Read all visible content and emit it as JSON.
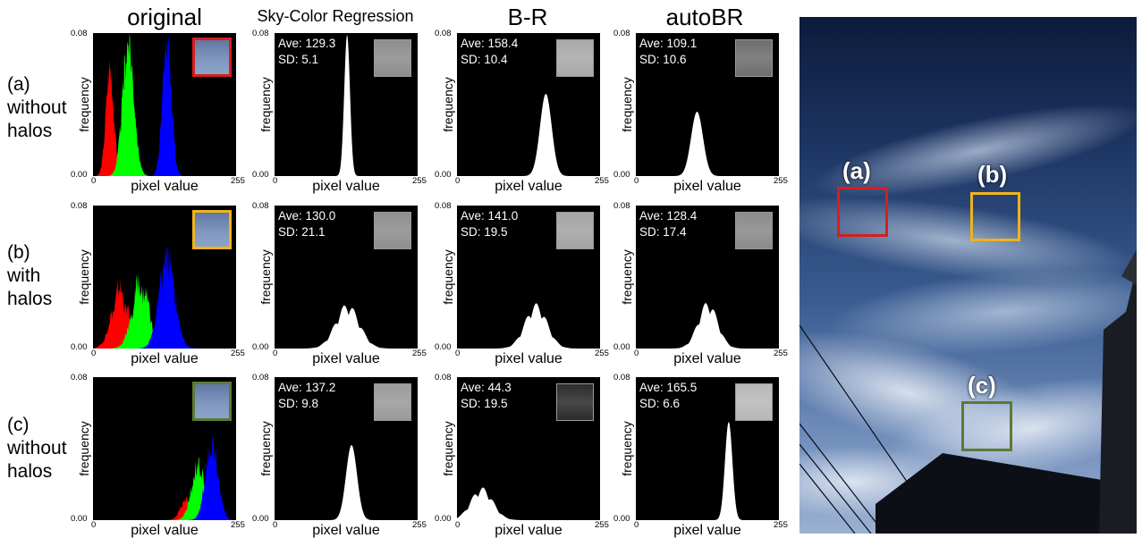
{
  "columns": [
    "original",
    "Sky-Color Regression",
    "B-R",
    "autoBR"
  ],
  "rows": [
    {
      "tag": "(a)",
      "label_lines": [
        "(a)",
        "without",
        "halos"
      ],
      "box_color": "#d81e1e"
    },
    {
      "tag": "(b)",
      "label_lines": [
        "(b)",
        "with",
        "halos"
      ],
      "box_color": "#f0b31c"
    },
    {
      "tag": "(c)",
      "label_lines": [
        "(c)",
        "without",
        "halos"
      ],
      "box_color": "#5a7a36"
    }
  ],
  "axes": {
    "ylabel": "frequency",
    "xlabel": "pixel value",
    "ytick_top": "0.08",
    "ytick_bottom": "0.00",
    "xtick_left": "0",
    "xtick_right": "255"
  },
  "stats": [
    [
      {
        "ave": "Ave: 129.3",
        "sd": "SD: 5.1"
      },
      {
        "ave": "Ave: 158.4",
        "sd": "SD: 10.4"
      },
      {
        "ave": "Ave: 109.1",
        "sd": "SD: 10.6"
      }
    ],
    [
      {
        "ave": "Ave: 130.0",
        "sd": "SD: 21.1"
      },
      {
        "ave": "Ave: 141.0",
        "sd": "SD: 19.5"
      },
      {
        "ave": "Ave: 128.4",
        "sd": "SD: 17.4"
      }
    ],
    [
      {
        "ave": "Ave: 137.2",
        "sd": "SD: 9.8"
      },
      {
        "ave": "Ave: 44.3",
        "sd": "SD: 19.5"
      },
      {
        "ave": "Ave: 165.5",
        "sd": "SD: 6.6"
      }
    ]
  ],
  "thumb_tones": [
    [
      "#8d8d8d",
      "#a9a9a9",
      "#6e6e6e"
    ],
    [
      "#8e8e8e",
      "#a3a3a3",
      "#8a8a8a"
    ],
    [
      "#9a9a9a",
      "#2c2c2c",
      "#b8b8b8"
    ]
  ],
  "sky_labels": [
    "(a)",
    "(b)",
    "(c)"
  ],
  "chart_data": {
    "type": "area",
    "description_units": "frequency vs pixel value (0-255)",
    "xlim": [
      0,
      255
    ],
    "ylim": [
      0,
      0.08
    ],
    "panels": [
      {
        "row": "(a)",
        "column": "original",
        "series": [
          {
            "name": "red",
            "color": "#ff0000",
            "mean": 30,
            "sd": 7,
            "peak": 0.06
          },
          {
            "name": "green",
            "color": "#00ff00",
            "mean": 63,
            "sd": 10,
            "peak": 0.075
          },
          {
            "name": "blue",
            "color": "#0000ff",
            "mean": 132,
            "sd": 8,
            "peak": 0.073
          }
        ]
      },
      {
        "row": "(a)",
        "column": "Sky-Color Regression",
        "series": [
          {
            "name": "gray",
            "color": "#ffffff",
            "mean": 129.3,
            "sd": 5.1,
            "peak": 0.079
          }
        ]
      },
      {
        "row": "(a)",
        "column": "B-R",
        "series": [
          {
            "name": "gray",
            "color": "#ffffff",
            "mean": 158.4,
            "sd": 10.4,
            "peak": 0.046
          }
        ]
      },
      {
        "row": "(a)",
        "column": "autoBR",
        "series": [
          {
            "name": "gray",
            "color": "#ffffff",
            "mean": 109.1,
            "sd": 10.6,
            "peak": 0.036
          }
        ]
      },
      {
        "row": "(b)",
        "column": "original",
        "series": [
          {
            "name": "red",
            "color": "#ff0000",
            "mean": 48,
            "sd": 15,
            "peak": 0.03
          },
          {
            "name": "green",
            "color": "#00ff00",
            "mean": 85,
            "sd": 15,
            "peak": 0.034
          },
          {
            "name": "blue",
            "color": "#0000ff",
            "mean": 132,
            "sd": 14,
            "peak": 0.05
          }
        ]
      },
      {
        "row": "(b)",
        "column": "Sky-Color Regression",
        "series": [
          {
            "name": "gray",
            "color": "#ffffff",
            "mean": 130.0,
            "sd": 21.1,
            "peak": 0.022
          }
        ]
      },
      {
        "row": "(b)",
        "column": "B-R",
        "series": [
          {
            "name": "gray",
            "color": "#ffffff",
            "mean": 141.0,
            "sd": 19.5,
            "peak": 0.022
          }
        ]
      },
      {
        "row": "(b)",
        "column": "autoBR",
        "series": [
          {
            "name": "gray",
            "color": "#ffffff",
            "mean": 128.4,
            "sd": 17.4,
            "peak": 0.023
          }
        ]
      },
      {
        "row": "(c)",
        "column": "original",
        "series": [
          {
            "name": "red",
            "color": "#ff0000",
            "mean": 168,
            "sd": 11,
            "peak": 0.012
          },
          {
            "name": "green",
            "color": "#00ff00",
            "mean": 188,
            "sd": 12,
            "peak": 0.03
          },
          {
            "name": "blue",
            "color": "#0000ff",
            "mean": 212,
            "sd": 11,
            "peak": 0.043
          }
        ]
      },
      {
        "row": "(c)",
        "column": "Sky-Color Regression",
        "series": [
          {
            "name": "gray",
            "color": "#ffffff",
            "mean": 137.2,
            "sd": 9.8,
            "peak": 0.042
          }
        ]
      },
      {
        "row": "(c)",
        "column": "B-R",
        "series": [
          {
            "name": "gray",
            "color": "#ffffff",
            "mean": 44.3,
            "sd": 19.5,
            "peak": 0.016
          }
        ]
      },
      {
        "row": "(c)",
        "column": "autoBR",
        "series": [
          {
            "name": "gray",
            "color": "#ffffff",
            "mean": 165.5,
            "sd": 6.6,
            "peak": 0.055
          }
        ]
      }
    ]
  }
}
